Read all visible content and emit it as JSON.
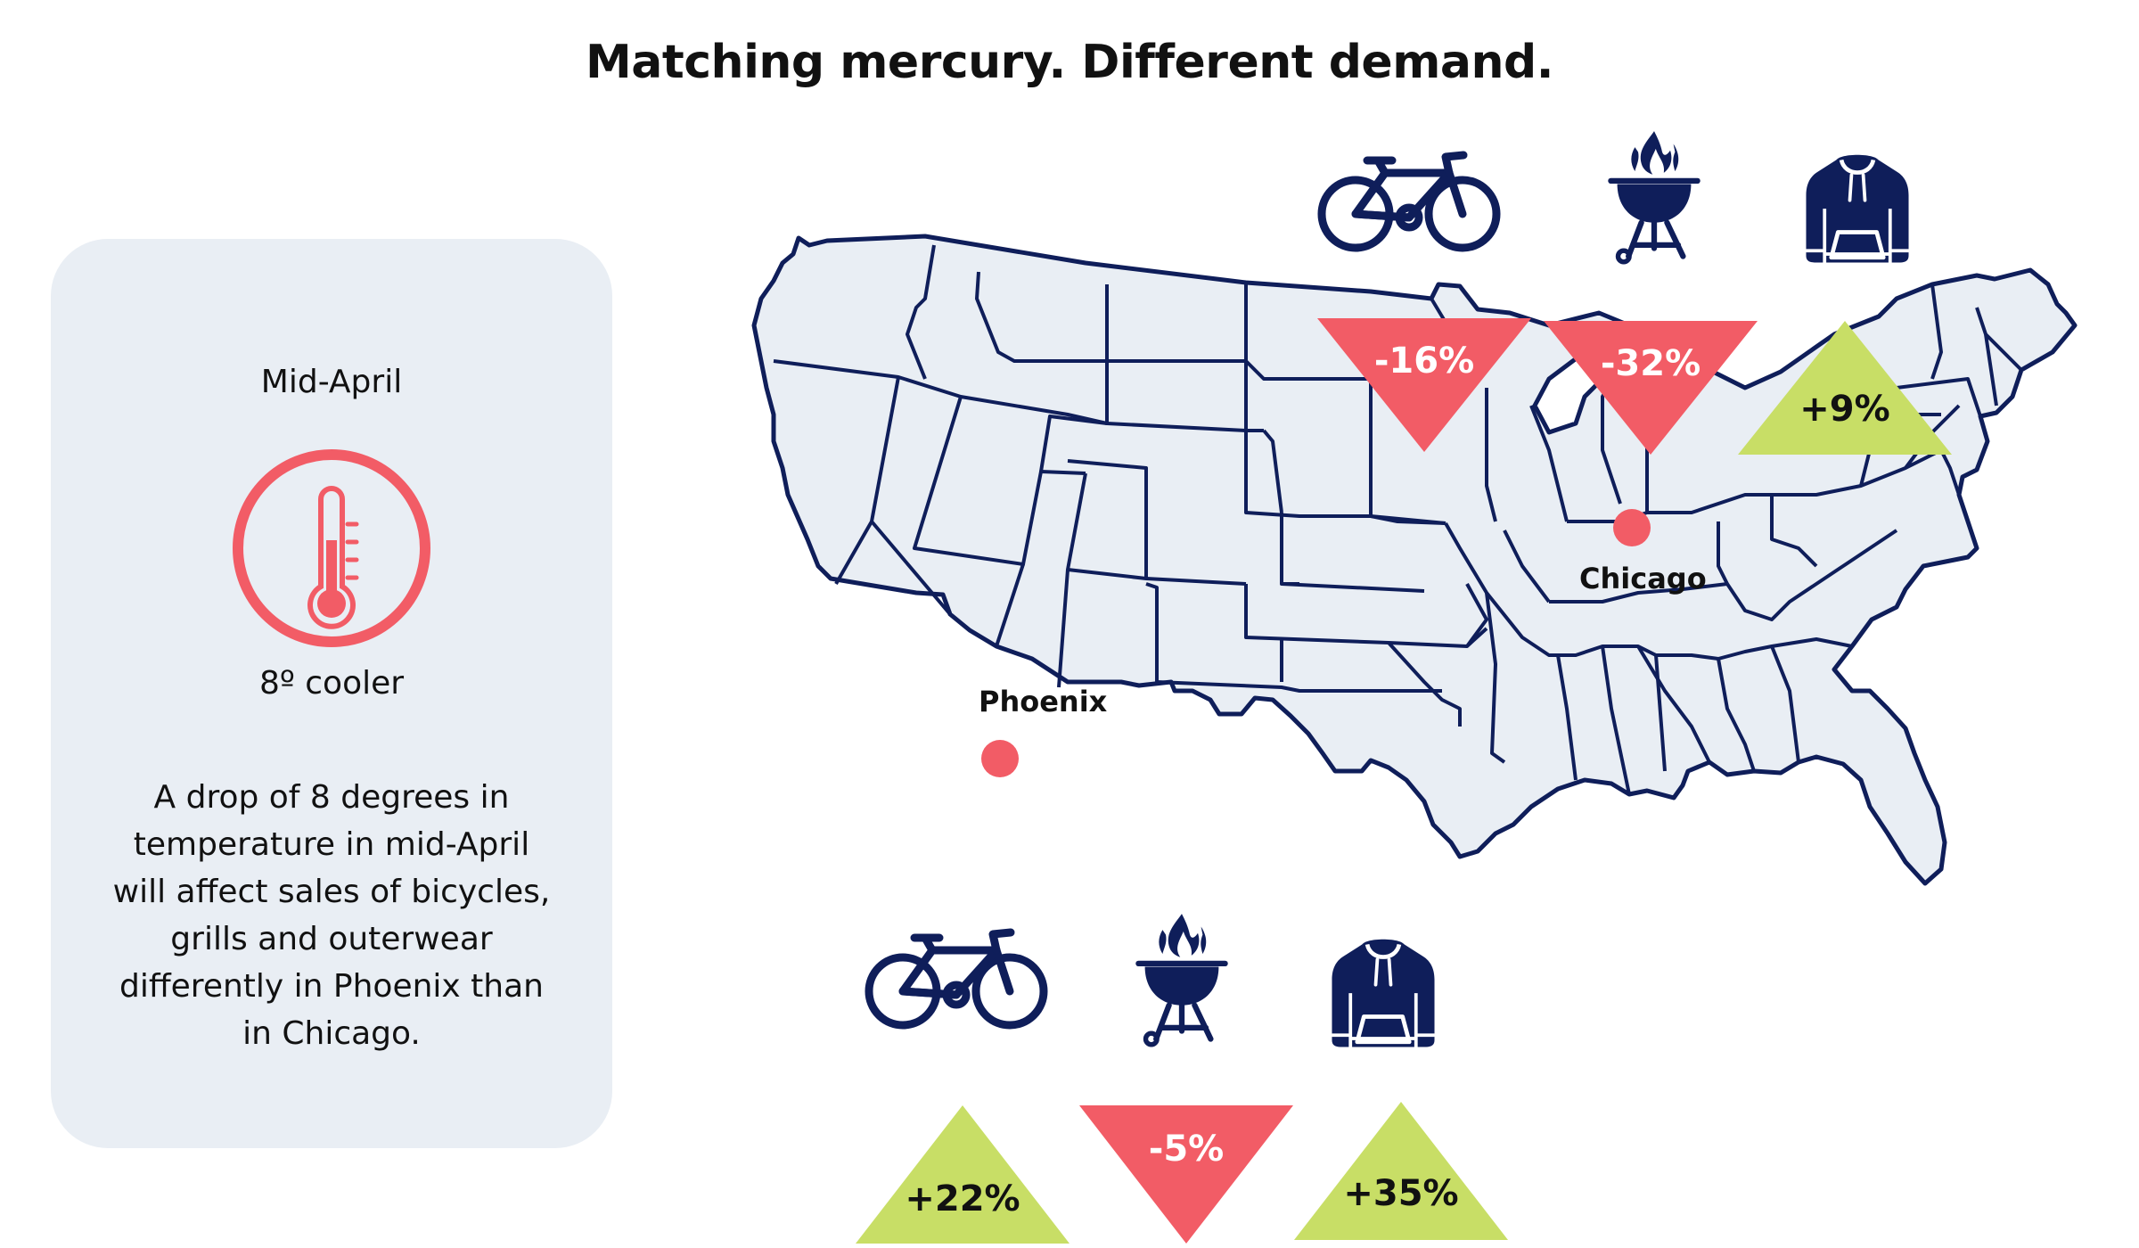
{
  "title": "Matching mercury. Different demand.",
  "panel": {
    "date": "Mid-April",
    "delta": "8º cooler",
    "body": "A drop of 8 degrees in temperature in mid-April will affect sales of bicycles, grills and outerwear differently in Phoenix than in Chicago."
  },
  "cities": {
    "chicago": "Chicago",
    "phoenix": "Phoenix"
  },
  "changes": {
    "chicago": {
      "bicycles": "-16%",
      "grills": "-32%",
      "outerwear": "+9%"
    },
    "phoenix": {
      "bicycles": "+22%",
      "grills": "-5%",
      "outerwear": "+35%"
    }
  },
  "icons": [
    "thermometer-icon",
    "bicycle-icon",
    "grill-icon",
    "hoodie-icon"
  ],
  "colors": {
    "decrease": "#f25c66",
    "increase": "#c8de66",
    "icon": "#0f1e5a",
    "map_fill": "#e9eef4",
    "map_stroke": "#0f1e5a",
    "panel": "#e9eef4"
  }
}
